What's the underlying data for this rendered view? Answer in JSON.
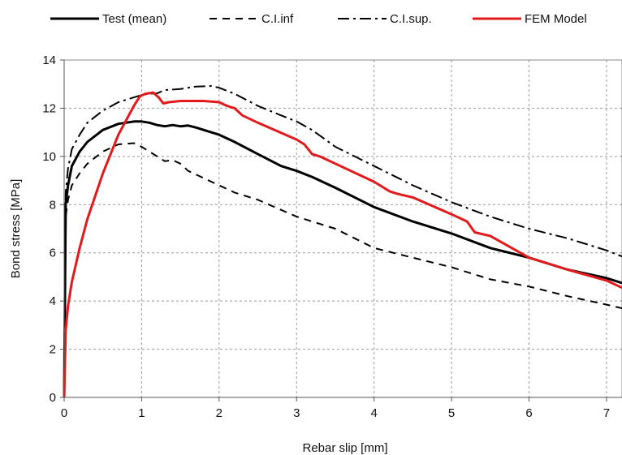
{
  "chart_data": {
    "type": "line",
    "title": "",
    "xlabel": "Rebar slip [mm]",
    "ylabel": "Bond stress [MPa]",
    "xlim": [
      0,
      7.2
    ],
    "ylim": [
      0,
      14
    ],
    "xticks": [
      "0",
      "1",
      "2",
      "3",
      "4",
      "5",
      "6",
      "7"
    ],
    "yticks": [
      "0",
      "2",
      "4",
      "6",
      "8",
      "10",
      "12",
      "14"
    ],
    "grid": true,
    "legend_position": "top",
    "series": [
      {
        "name": "Test (mean)",
        "color": "#000000",
        "dash": "solid",
        "x": [
          0,
          0.02,
          0.05,
          0.1,
          0.2,
          0.3,
          0.5,
          0.7,
          0.9,
          1.0,
          1.1,
          1.2,
          1.3,
          1.4,
          1.5,
          1.6,
          1.7,
          1.8,
          2.0,
          2.2,
          2.5,
          2.8,
          3.0,
          3.2,
          3.5,
          4.0,
          4.5,
          5.0,
          5.5,
          6.0,
          6.5,
          7.0,
          7.2
        ],
        "y": [
          0,
          8.0,
          8.8,
          9.6,
          10.2,
          10.6,
          11.1,
          11.35,
          11.45,
          11.45,
          11.4,
          11.3,
          11.25,
          11.3,
          11.25,
          11.28,
          11.2,
          11.1,
          10.9,
          10.6,
          10.1,
          9.6,
          9.4,
          9.15,
          8.7,
          7.9,
          7.3,
          6.8,
          6.2,
          5.8,
          5.3,
          4.95,
          4.75
        ]
      },
      {
        "name": "C.I.inf",
        "color": "#000000",
        "dash": "dashed",
        "x": [
          0,
          0.02,
          0.05,
          0.1,
          0.2,
          0.3,
          0.5,
          0.7,
          0.9,
          1.0,
          1.1,
          1.2,
          1.3,
          1.4,
          1.5,
          1.6,
          1.8,
          2.0,
          2.2,
          2.5,
          3.0,
          3.5,
          4.0,
          4.5,
          5.0,
          5.5,
          6.0,
          6.5,
          7.0,
          7.2
        ],
        "y": [
          0,
          7.5,
          8.2,
          8.8,
          9.3,
          9.7,
          10.2,
          10.5,
          10.55,
          10.4,
          10.2,
          10.0,
          9.8,
          9.85,
          9.7,
          9.4,
          9.1,
          8.8,
          8.5,
          8.2,
          7.5,
          7.0,
          6.2,
          5.8,
          5.4,
          4.9,
          4.6,
          4.2,
          3.85,
          3.7
        ]
      },
      {
        "name": "C.I.sup.",
        "color": "#000000",
        "dash": "dashdot",
        "x": [
          0,
          0.02,
          0.05,
          0.1,
          0.2,
          0.3,
          0.5,
          0.7,
          0.9,
          1.0,
          1.1,
          1.2,
          1.3,
          1.5,
          1.7,
          1.9,
          2.0,
          2.2,
          2.5,
          2.8,
          3.0,
          3.2,
          3.5,
          4.0,
          4.5,
          5.0,
          5.5,
          6.0,
          6.5,
          7.0,
          7.2
        ],
        "y": [
          0,
          8.5,
          9.5,
          10.3,
          10.9,
          11.4,
          11.9,
          12.25,
          12.45,
          12.55,
          12.6,
          12.62,
          12.75,
          12.8,
          12.9,
          12.92,
          12.85,
          12.6,
          12.1,
          11.7,
          11.45,
          11.1,
          10.4,
          9.6,
          8.8,
          8.1,
          7.5,
          7.0,
          6.6,
          6.1,
          5.85
        ]
      },
      {
        "name": "FEM Model",
        "color": "#e31a1c",
        "dash": "solid",
        "x": [
          0,
          0.02,
          0.05,
          0.1,
          0.2,
          0.3,
          0.5,
          0.7,
          0.9,
          0.98,
          1.05,
          1.15,
          1.22,
          1.28,
          1.35,
          1.5,
          1.8,
          2.0,
          2.1,
          2.2,
          2.3,
          2.5,
          3.0,
          3.1,
          3.2,
          3.3,
          3.5,
          4.0,
          4.2,
          4.3,
          4.5,
          5.0,
          5.2,
          5.3,
          5.5,
          6.0,
          6.5,
          7.0,
          7.2
        ],
        "y": [
          0,
          2.8,
          3.8,
          4.8,
          6.2,
          7.4,
          9.3,
          10.9,
          12.1,
          12.5,
          12.6,
          12.65,
          12.45,
          12.2,
          12.25,
          12.3,
          12.3,
          12.25,
          12.1,
          12.0,
          11.7,
          11.4,
          10.7,
          10.5,
          10.1,
          10.0,
          9.7,
          8.95,
          8.55,
          8.45,
          8.3,
          7.6,
          7.3,
          6.85,
          6.7,
          5.8,
          5.3,
          4.85,
          4.55
        ]
      }
    ]
  }
}
